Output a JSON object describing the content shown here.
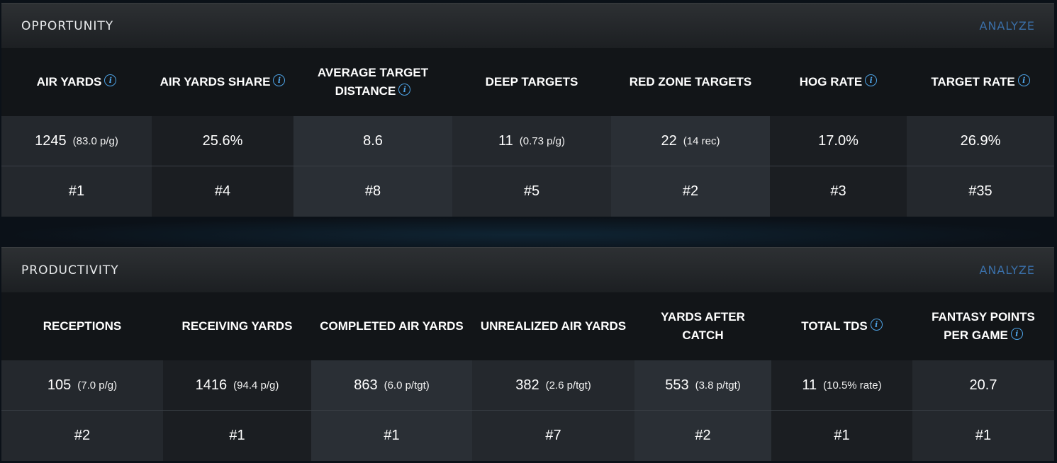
{
  "opportunity": {
    "title": "OPPORTUNITY",
    "action": "ANALYZE",
    "metrics": [
      {
        "label": "AIR YARDS",
        "info": true,
        "value": "1245",
        "sub": "(83.0 p/g)",
        "rank": "#1"
      },
      {
        "label": "AIR YARDS SHARE",
        "info": true,
        "value": "25.6%",
        "sub": "",
        "rank": "#4"
      },
      {
        "label": "AVERAGE TARGET DISTANCE",
        "info": true,
        "value": "8.6",
        "sub": "",
        "rank": "#8"
      },
      {
        "label": "DEEP TARGETS",
        "info": false,
        "value": "11",
        "sub": "(0.73 p/g)",
        "rank": "#5"
      },
      {
        "label": "RED ZONE TARGETS",
        "info": false,
        "value": "22",
        "sub": "(14 rec)",
        "rank": "#2"
      },
      {
        "label": "HOG RATE",
        "info": true,
        "value": "17.0%",
        "sub": "",
        "rank": "#3"
      },
      {
        "label": "TARGET RATE",
        "info": true,
        "value": "26.9%",
        "sub": "",
        "rank": "#35"
      }
    ]
  },
  "productivity": {
    "title": "PRODUCTIVITY",
    "action": "ANALYZE",
    "metrics": [
      {
        "label": "RECEPTIONS",
        "info": false,
        "value": "105",
        "sub": "(7.0 p/g)",
        "rank": "#2"
      },
      {
        "label": "RECEIVING YARDS",
        "info": false,
        "value": "1416",
        "sub": "(94.4 p/g)",
        "rank": "#1"
      },
      {
        "label": "COMPLETED AIR YARDS",
        "info": false,
        "value": "863",
        "sub": "(6.0 p/tgt)",
        "rank": "#1"
      },
      {
        "label": "UNREALIZED AIR YARDS",
        "info": false,
        "value": "382",
        "sub": "(2.6 p/tgt)",
        "rank": "#7"
      },
      {
        "label": "YARDS AFTER CATCH",
        "info": false,
        "value": "553",
        "sub": "(3.8 p/tgt)",
        "rank": "#2"
      },
      {
        "label": "TOTAL TDS",
        "info": true,
        "value": "11",
        "sub": "(10.5% rate)",
        "rank": "#1"
      },
      {
        "label": "FANTASY POINTS PER GAME",
        "info": true,
        "value": "20.7",
        "sub": "",
        "rank": "#1"
      }
    ]
  },
  "icons": {
    "info": "info-icon",
    "info_glyph": "i"
  },
  "colors": {
    "accent": "#4ea3e6",
    "action": "#3a6fa8"
  }
}
